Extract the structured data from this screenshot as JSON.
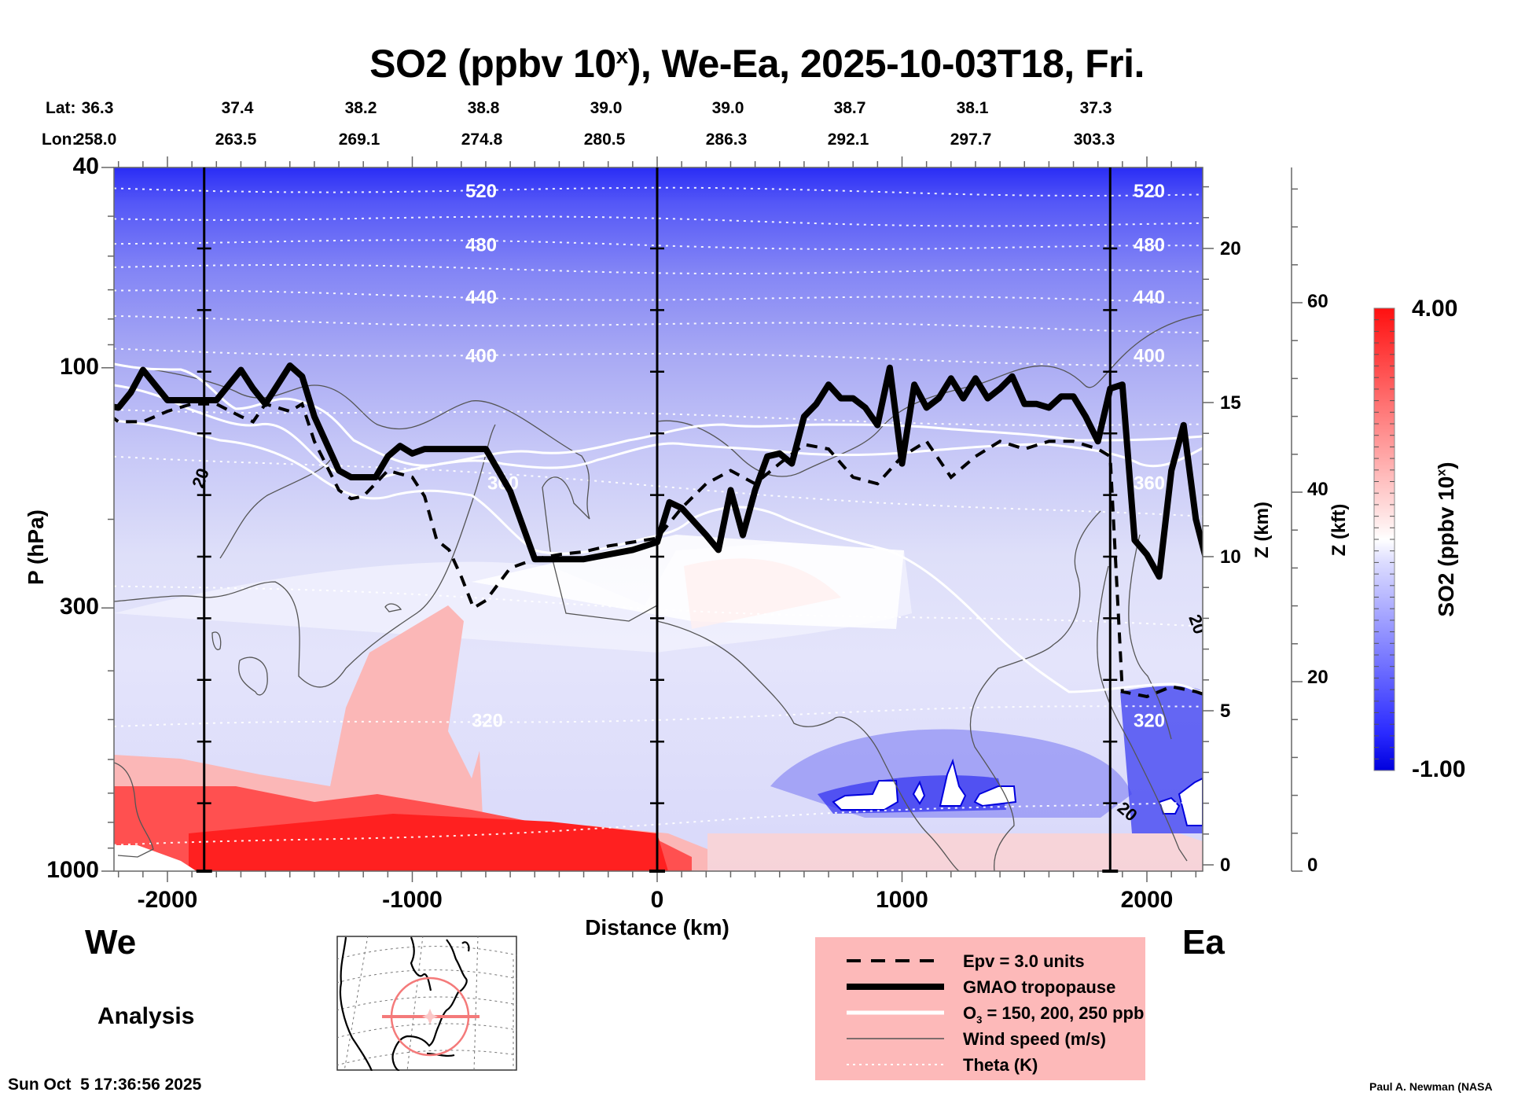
{
  "title": {
    "main_prefix": "SO2 (ppbv 10",
    "superscript": "x",
    "main_suffix": "), We-Ea, 2025-10-03T18, Fri."
  },
  "lat_label": "Lat:",
  "lon_label": "Lon:",
  "chart_data": {
    "type": "heatmap",
    "title": "SO2 (ppbv 10^x), We-Ea, 2025-10-03T18, Fri.",
    "xlabel": "Distance (km)",
    "ylabel": "P (hPa)",
    "xlim": [
      -2300,
      2260
    ],
    "ylim": [
      1000,
      40
    ],
    "yscale": "log",
    "x_ticks": [
      -2000,
      -1000,
      0,
      1000,
      2000
    ],
    "x_tick_labels": [
      "-2000",
      "-1000",
      "0",
      "1000",
      "2000"
    ],
    "y_ticks": [
      40,
      100,
      300,
      1000
    ],
    "y_tick_labels": [
      "40",
      "100",
      "300",
      "1000"
    ],
    "right_axes": [
      {
        "label": "Z (km)",
        "ticks": [
          0,
          5,
          10,
          15,
          20
        ],
        "tick_labels": [
          "0",
          "5",
          "10",
          "15",
          "20"
        ]
      },
      {
        "label": "Z (kft)",
        "ticks": [
          0,
          20,
          40,
          60
        ],
        "tick_labels": [
          "0",
          "20",
          "40",
          "60"
        ]
      }
    ],
    "latitudes": [
      "36.3",
      "37.4",
      "38.2",
      "38.8",
      "39.0",
      "39.0",
      "38.7",
      "38.1",
      "37.3"
    ],
    "longitudes": [
      "258.0",
      "263.5",
      "269.1",
      "274.8",
      "280.5",
      "286.3",
      "292.1",
      "297.7",
      "303.3"
    ],
    "vertical_markers_km": [
      -1850,
      0,
      1850
    ],
    "colorbar": {
      "label_prefix": "SO2 (ppbv 10",
      "label_sup": "x",
      "label_suffix": ")",
      "min": -1.0,
      "max": 4.0,
      "min_label": "-1.00",
      "max_label": "4.00",
      "colors": [
        "#0000dd",
        "#ffffff",
        "#ff0000"
      ]
    },
    "theta_contours": [
      {
        "value": 520,
        "label": "520",
        "p_west": 44,
        "p_east": 45
      },
      {
        "value": 500,
        "label": "",
        "p_west": 50,
        "p_east": 52
      },
      {
        "value": 480,
        "label": "480",
        "p_west": 56,
        "p_east": 58
      },
      {
        "value": 460,
        "label": "",
        "p_west": 63,
        "p_east": 65
      },
      {
        "value": 440,
        "label": "440",
        "p_west": 71,
        "p_east": 74
      },
      {
        "value": 420,
        "label": "",
        "p_west": 80,
        "p_east": 84
      },
      {
        "value": 400,
        "label": "400",
        "p_west": 92,
        "p_east": 98
      },
      {
        "value": 380,
        "label": "",
        "p_west": 120,
        "p_east": 130
      },
      {
        "value": 360,
        "label": "360",
        "p_west": 148,
        "p_east": 200
      },
      {
        "value": 340,
        "label": "",
        "p_west": 270,
        "p_east": 330
      },
      {
        "value": 320,
        "label": "320",
        "p_west": 520,
        "p_east": 470
      },
      {
        "value": 300,
        "label": "",
        "p_west": 900,
        "p_east": 720
      }
    ],
    "tropopause_hpa": {
      "x_km": [
        -2300,
        -2200,
        -2150,
        -2100,
        -2000,
        -1900,
        -1800,
        -1700,
        -1650,
        -1600,
        -1500,
        -1450,
        -1400,
        -1300,
        -1250,
        -1200,
        -1150,
        -1100,
        -1050,
        -1000,
        -950,
        -900,
        -850,
        -800,
        -750,
        -700,
        -600,
        -500,
        -400,
        -300,
        -200,
        -100,
        0,
        50,
        100,
        200,
        250,
        300,
        350,
        400,
        450,
        500,
        550,
        600,
        650,
        700,
        750,
        800,
        850,
        900,
        950,
        1000,
        1050,
        1100,
        1150,
        1200,
        1250,
        1300,
        1350,
        1400,
        1450,
        1500,
        1550,
        1600,
        1650,
        1700,
        1750,
        1800,
        1850,
        1900,
        1950,
        2000,
        2050,
        2100,
        2150,
        2200,
        2260
      ],
      "p": [
        118,
        120,
        112,
        101,
        116,
        116,
        116,
        101,
        110,
        118,
        99,
        104,
        125,
        160,
        165,
        165,
        165,
        150,
        143,
        148,
        145,
        145,
        145,
        145,
        145,
        145,
        176,
        240,
        240,
        240,
        235,
        230,
        222,
        185,
        190,
        215,
        230,
        175,
        215,
        175,
        150,
        148,
        155,
        125,
        118,
        108,
        115,
        115,
        120,
        130,
        100,
        155,
        108,
        120,
        115,
        105,
        115,
        105,
        115,
        110,
        104,
        118,
        118,
        120,
        114,
        114,
        125,
        140,
        110,
        108,
        220,
        235,
        260,
        160,
        130,
        200,
        260
      ]
    },
    "epv_3_hpa": {
      "x_km": [
        -2300,
        -2200,
        -2100,
        -2000,
        -1900,
        -1800,
        -1700,
        -1650,
        -1600,
        -1500,
        -1450,
        -1400,
        -1300,
        -1250,
        -1200,
        -1100,
        -1000,
        -950,
        -900,
        -850,
        -800,
        -750,
        -700,
        -600,
        -500,
        -400,
        -300,
        -200,
        -100,
        0,
        100,
        200,
        300,
        400,
        500,
        600,
        700,
        800,
        900,
        1000,
        1100,
        1200,
        1300,
        1400,
        1500,
        1600,
        1700,
        1800,
        1850,
        1900,
        2000,
        2100,
        2200,
        2260
      ],
      "p": [
        118,
        128,
        128,
        122,
        118,
        118,
        125,
        128,
        118,
        122,
        118,
        140,
        175,
        182,
        180,
        160,
        165,
        180,
        220,
        230,
        260,
        300,
        290,
        250,
        240,
        235,
        232,
        226,
        222,
        218,
        190,
        170,
        160,
        170,
        155,
        142,
        145,
        165,
        170,
        150,
        140,
        165,
        150,
        140,
        145,
        140,
        140,
        145,
        150,
        440,
        450,
        430,
        440,
        450
      ]
    },
    "o3_contours_ppb": [
      150,
      200,
      250
    ],
    "wind_speed_label": "20",
    "legend_position": "bottom-right"
  },
  "legend": {
    "items": [
      {
        "label": "Epv = 3.0 units",
        "style": "dashed-black"
      },
      {
        "label": "GMAO tropopause",
        "style": "thick-black"
      },
      {
        "label_prefix": "O",
        "label_sub": "3",
        "label_suffix": " = 150, 200, 250 ppb",
        "style": "white"
      },
      {
        "label": "Wind speed (m/s)",
        "style": "thin-gray"
      },
      {
        "label": "Theta (K)",
        "style": "dotted-white"
      }
    ]
  },
  "direction_west": "We",
  "direction_east": "Ea",
  "analysis_label": "Analysis",
  "timestamp": "Sun Oct  5 17:36:56 2025",
  "credit": "Paul A. Newman (NASA"
}
